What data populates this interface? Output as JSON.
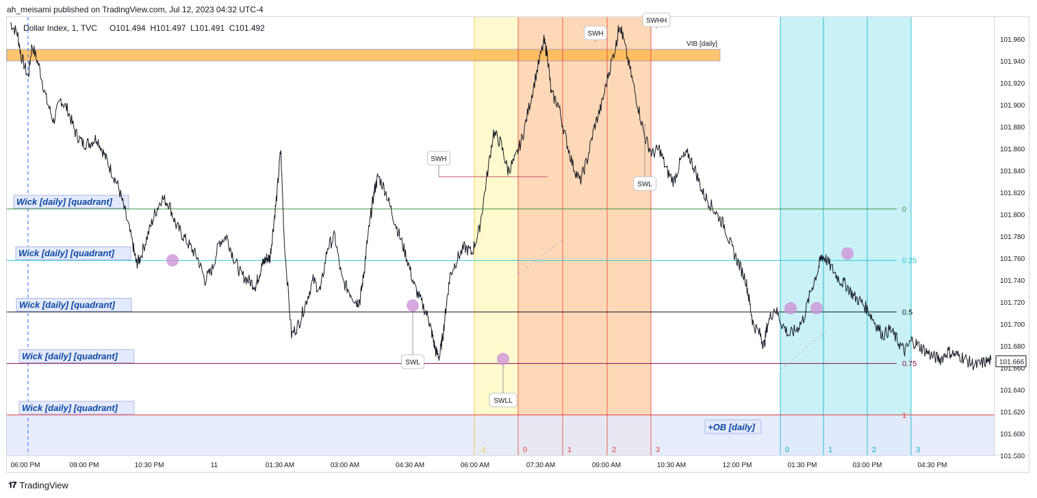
{
  "header": {
    "published_by": "ah_meisami published on TradingView.com, Jul 12, 2023 04:32 UTC-4"
  },
  "footer": {
    "brand": "TradingView",
    "logo": "tradingview-logo-icon"
  },
  "chart_data": {
    "type": "line",
    "title": "U.S. Dollar Index, 1, TVC",
    "symbol_label": "Dollar Index, 1, TVC",
    "ohlc": {
      "O": "101.494",
      "H": "101.497",
      "L": "101.491",
      "C": "101.492"
    },
    "ohlc_text": "O101.494  H101.497  L101.491  C101.492",
    "last_price": "101.666",
    "y_axis": {
      "ylim": [
        101.58,
        101.98
      ],
      "ticks": [
        "101.960",
        "101.940",
        "101.920",
        "101.900",
        "101.880",
        "101.860",
        "101.840",
        "101.820",
        "101.800",
        "101.780",
        "101.760",
        "101.740",
        "101.720",
        "101.700",
        "101.680",
        "101.660",
        "101.640",
        "101.620",
        "101.600",
        "101.580"
      ]
    },
    "x_axis": {
      "ticks": [
        "06:00 PM",
        "09:00 PM",
        "10:30 PM",
        "11",
        "01:30 AM",
        "03:00 AM",
        "04:30 AM",
        "06:00 AM",
        "07:30 AM",
        "09:00 AM",
        "10:30 AM",
        "12:00 PM",
        "01:30 PM",
        "03:00 PM",
        "04:30 PM"
      ]
    },
    "series": [
      {
        "price_path": [
          [
            0,
            101.975
          ],
          [
            2,
            101.965
          ],
          [
            3,
            101.945
          ],
          [
            5,
            101.925
          ],
          [
            6,
            101.955
          ],
          [
            8,
            101.935
          ],
          [
            10,
            101.905
          ],
          [
            12,
            101.885
          ],
          [
            14,
            101.905
          ],
          [
            16,
            101.895
          ],
          [
            18,
            101.875
          ],
          [
            20,
            101.865
          ],
          [
            22,
            101.865
          ],
          [
            24,
            101.87
          ],
          [
            26,
            101.855
          ],
          [
            28,
            101.84
          ],
          [
            30,
            101.825
          ],
          [
            32,
            101.8
          ],
          [
            34,
            101.772
          ],
          [
            35,
            101.755
          ],
          [
            36,
            101.76
          ],
          [
            38,
            101.78
          ],
          [
            40,
            101.8
          ],
          [
            42,
            101.815
          ],
          [
            44,
            101.81
          ],
          [
            46,
            101.79
          ],
          [
            48,
            101.78
          ],
          [
            50,
            101.77
          ],
          [
            52,
            101.76
          ],
          [
            54,
            101.74
          ],
          [
            56,
            101.75
          ],
          [
            58,
            101.775
          ],
          [
            60,
            101.78
          ],
          [
            62,
            101.76
          ],
          [
            64,
            101.745
          ],
          [
            66,
            101.74
          ],
          [
            68,
            101.735
          ],
          [
            69,
            101.745
          ],
          [
            70,
            101.755
          ],
          [
            71,
            101.76
          ],
          [
            72,
            101.76
          ],
          [
            73,
            101.79
          ],
          [
            74,
            101.82
          ],
          [
            75,
            101.86
          ],
          [
            76,
            101.775
          ],
          [
            78,
            101.69
          ],
          [
            80,
            101.7
          ],
          [
            82,
            101.72
          ],
          [
            84,
            101.74
          ],
          [
            86,
            101.73
          ],
          [
            88,
            101.77
          ],
          [
            90,
            101.78
          ],
          [
            92,
            101.74
          ],
          [
            94,
            101.73
          ],
          [
            96,
            101.72
          ],
          [
            97,
            101.722
          ],
          [
            98,
            101.745
          ],
          [
            99,
            101.775
          ],
          [
            100,
            101.8
          ],
          [
            101,
            101.822
          ],
          [
            102,
            101.835
          ],
          [
            104,
            101.822
          ],
          [
            106,
            101.8
          ],
          [
            108,
            101.78
          ],
          [
            110,
            101.76
          ],
          [
            112,
            101.735
          ],
          [
            114,
            101.72
          ],
          [
            116,
            101.705
          ],
          [
            117,
            101.69
          ],
          [
            118,
            101.675
          ],
          [
            119,
            101.67
          ],
          [
            120,
            101.69
          ],
          [
            121,
            101.72
          ],
          [
            122,
            101.745
          ],
          [
            124,
            101.76
          ],
          [
            126,
            101.77
          ],
          [
            128,
            101.765
          ],
          [
            130,
            101.785
          ],
          [
            132,
            101.83
          ],
          [
            134,
            101.875
          ],
          [
            136,
            101.865
          ],
          [
            138,
            101.84
          ],
          [
            140,
            101.85
          ],
          [
            142,
            101.87
          ],
          [
            144,
            101.9
          ],
          [
            146,
            101.93
          ],
          [
            148,
            101.958
          ],
          [
            149,
            101.945
          ],
          [
            150,
            101.91
          ],
          [
            152,
            101.9
          ],
          [
            154,
            101.87
          ],
          [
            156,
            101.845
          ],
          [
            158,
            101.83
          ],
          [
            160,
            101.85
          ],
          [
            162,
            101.88
          ],
          [
            164,
            101.9
          ],
          [
            166,
            101.93
          ],
          [
            168,
            101.955
          ],
          [
            169,
            101.975
          ],
          [
            170,
            101.96
          ],
          [
            172,
            101.93
          ],
          [
            174,
            101.9
          ],
          [
            176,
            101.87
          ],
          [
            178,
            101.855
          ],
          [
            180,
            101.86
          ],
          [
            182,
            101.84
          ],
          [
            184,
            101.83
          ],
          [
            186,
            101.85
          ],
          [
            188,
            101.855
          ],
          [
            190,
            101.84
          ],
          [
            192,
            101.82
          ],
          [
            194,
            101.81
          ],
          [
            196,
            101.8
          ],
          [
            198,
            101.79
          ],
          [
            200,
            101.77
          ],
          [
            202,
            101.755
          ],
          [
            204,
            101.74
          ],
          [
            205,
            101.72
          ],
          [
            206,
            101.7
          ],
          [
            208,
            101.69
          ],
          [
            209,
            101.68
          ],
          [
            210,
            101.7
          ],
          [
            212,
            101.715
          ],
          [
            214,
            101.7
          ],
          [
            216,
            101.69
          ],
          [
            218,
            101.695
          ],
          [
            220,
            101.705
          ],
          [
            222,
            101.73
          ],
          [
            224,
            101.75
          ],
          [
            225,
            101.762
          ],
          [
            226,
            101.76
          ],
          [
            228,
            101.75
          ],
          [
            230,
            101.74
          ],
          [
            232,
            101.735
          ],
          [
            234,
            101.725
          ],
          [
            236,
            101.72
          ],
          [
            238,
            101.712
          ],
          [
            240,
            101.7
          ],
          [
            242,
            101.69
          ],
          [
            244,
            101.695
          ],
          [
            246,
            101.685
          ],
          [
            248,
            101.675
          ],
          [
            250,
            101.685
          ],
          [
            252,
            101.68
          ],
          [
            254,
            101.675
          ],
          [
            256,
            101.67
          ],
          [
            258,
            101.668
          ],
          [
            260,
            101.675
          ],
          [
            262,
            101.672
          ],
          [
            264,
            101.67
          ],
          [
            266,
            101.665
          ],
          [
            268,
            101.662
          ],
          [
            270,
            101.665
          ],
          [
            272,
            101.667
          ]
        ]
      }
    ],
    "levels": [
      {
        "label": "Wick [daily] [quadrant]",
        "value": 101.805,
        "fib": "0",
        "color": "#388e3c"
      },
      {
        "label": "Wick [daily] [quadrant]",
        "value": 101.758,
        "fib": "0.25",
        "color": "#26c6da"
      },
      {
        "label": "Wick [daily] [quadrant]",
        "value": 101.711,
        "fib": "0.5",
        "color": "#131722"
      },
      {
        "label": "Wick [daily] [quadrant]",
        "value": 101.664,
        "fib": "0.75",
        "color": "#880e4f"
      },
      {
        "label": "Wick [daily] [quadrant]",
        "value": 101.617,
        "fib": "1",
        "color": "#e53935"
      }
    ],
    "annotations": {
      "vib": "VIB [daily]",
      "ob": "+OB [daily]",
      "swing_labels": [
        "SWH",
        "SWL",
        "SWLL",
        "SWH",
        "SWL",
        "SWHH"
      ],
      "session_counts": [
        "-1",
        "0",
        "1",
        "2",
        "3",
        "0",
        "1",
        "2",
        "3"
      ]
    },
    "colors": {
      "price": "#131722",
      "vib_zone": "#ffb74d",
      "ob_zone": "#e3eafd",
      "yellow_zone": "#fff9c4",
      "orange_zone": "#ffcc9f",
      "cyan_zone": "#b2ebf2",
      "swing_marker": "#ce93d8",
      "level_label_text": "#0d47a1"
    },
    "grid": false,
    "legend": "top-left"
  }
}
